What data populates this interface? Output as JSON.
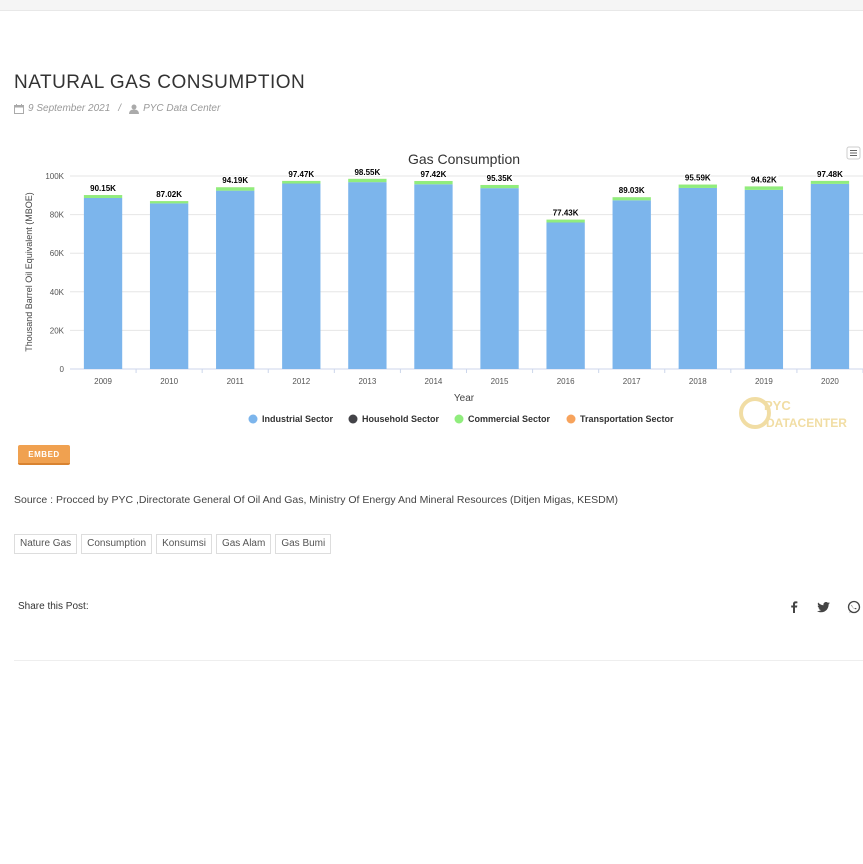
{
  "post": {
    "title": "NATURAL GAS CONSUMPTION",
    "date": "9 September 2021",
    "separator": "/",
    "author": "PYC Data Center"
  },
  "embed_label": "EMBED",
  "source": "Source : Procced by PYC ,Directorate General Of Oil And Gas, Ministry Of Energy And Mineral Resources (Ditjen Migas, KESDM)",
  "tags": [
    "Nature Gas",
    "Consumption",
    "Konsumsi",
    "Gas Alam",
    "Gas Bumi"
  ],
  "share": {
    "label": "Share this Post:",
    "icons": [
      "facebook-icon",
      "twitter-icon",
      "whatsapp-icon"
    ]
  },
  "watermark": {
    "line1": "PYC",
    "line2": "DATACENTER"
  },
  "colors": {
    "industrial": "#7cb5ec",
    "household": "#434348",
    "commercial": "#90ed7d",
    "transportation": "#f7a35c",
    "button": "#f0a150"
  },
  "chart_data": {
    "type": "bar",
    "stacked": true,
    "title": "Gas Consumption",
    "xlabel": "Year",
    "ylabel": "Thousand Barrel Oil Equivalent (MBOE)",
    "ylim": [
      0,
      100000
    ],
    "yticks": [
      0,
      20000,
      40000,
      60000,
      80000,
      100000
    ],
    "ytick_labels": [
      "0",
      "20K",
      "40K",
      "60K",
      "80K",
      "100K"
    ],
    "categories": [
      "2009",
      "2010",
      "2011",
      "2012",
      "2013",
      "2014",
      "2015",
      "2016",
      "2017",
      "2018",
      "2019",
      "2020"
    ],
    "series": [
      {
        "name": "Industrial Sector",
        "values": [
          88600,
          85800,
          92400,
          96100,
          96800,
          95700,
          93700,
          75900,
          87400,
          93800,
          92800,
          95900
        ]
      },
      {
        "name": "Household Sector",
        "values": [
          10,
          10,
          10,
          10,
          10,
          10,
          10,
          10,
          10,
          10,
          10,
          10
        ]
      },
      {
        "name": "Commercial Sector",
        "values": [
          1520,
          1190,
          1760,
          1340,
          1720,
          1690,
          1630,
          1500,
          1600,
          1760,
          1790,
          1550
        ]
      },
      {
        "name": "Transportation Sector",
        "values": [
          20,
          20,
          20,
          20,
          20,
          20,
          20,
          20,
          20,
          20,
          20,
          20
        ]
      }
    ],
    "totals_labels": [
      "90.15K",
      "87.02K",
      "94.19K",
      "97.47K",
      "98.55K",
      "97.42K",
      "95.35K",
      "77.43K",
      "89.03K",
      "95.59K",
      "94.62K",
      "97.48K"
    ],
    "legend": [
      "Industrial Sector",
      "Household Sector",
      "Commercial Sector",
      "Transportation Sector"
    ],
    "legend_position": "bottom",
    "grid": true,
    "menu_icon": "hamburger-menu-icon"
  }
}
